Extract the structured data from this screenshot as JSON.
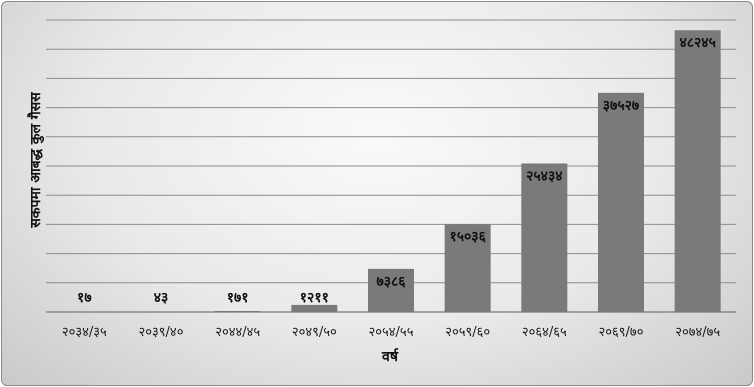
{
  "chart_data": {
    "type": "bar",
    "title": "",
    "xlabel": "वर्ष",
    "ylabel": "सकपमा आबद्ध कुल गैसस",
    "categories": [
      "२०३४/३५",
      "२०३९/४०",
      "२०४४/४५",
      "२०४९/५०",
      "२०५४/५५",
      "२०५९/६०",
      "२०६४/६५",
      "२०६९/७०",
      "२०७४/७५"
    ],
    "values": [
      17,
      43,
      171,
      1211,
      7386,
      15036,
      25434,
      37527,
      48245
    ],
    "data_labels": [
      "१७",
      "४३",
      "१७१",
      "१२११",
      "७३८६",
      "१५०३६",
      "२५४३४",
      "३७५२७",
      "४८२४५"
    ],
    "ylim": [
      0,
      50000
    ],
    "y_gridlines": 10,
    "grid": true,
    "legend": "none",
    "bar_color": "#7a7a7a",
    "gridline_color": "#8c8c8c"
  }
}
